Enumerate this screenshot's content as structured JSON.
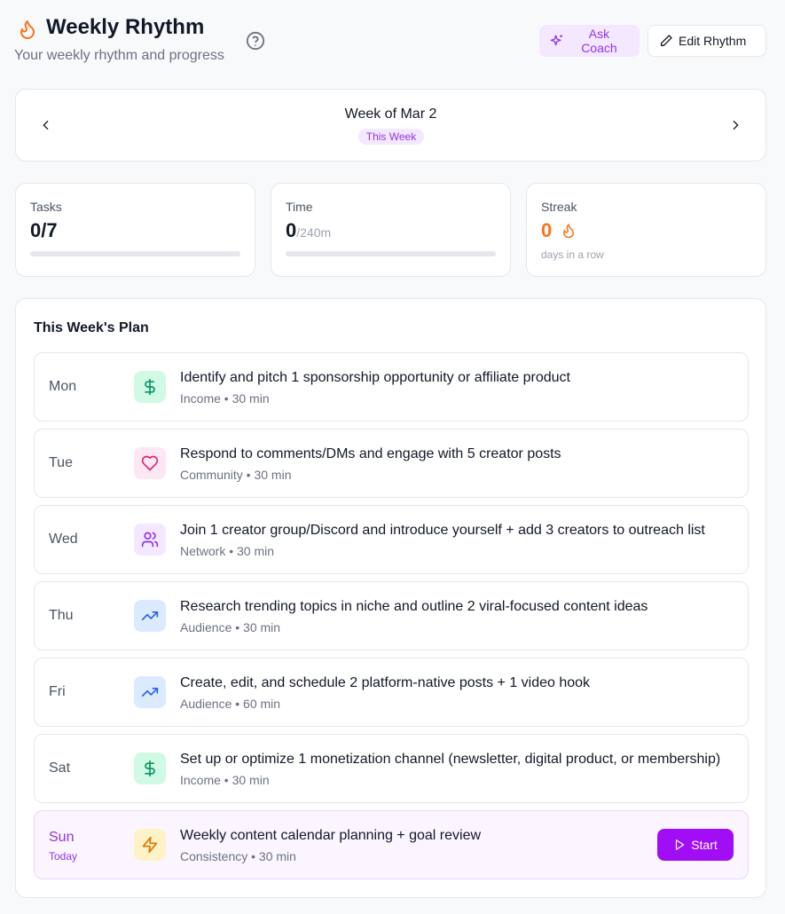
{
  "header": {
    "title": "Weekly Rhythm",
    "subtitle": "Your weekly rhythm and progress",
    "ask_coach": "Ask Coach",
    "edit_rhythm": "Edit Rhythm"
  },
  "week": {
    "label": "Week of Mar 2",
    "badge": "This Week"
  },
  "stats": {
    "tasks_label": "Tasks",
    "tasks_value": "0/7",
    "tasks_progress": 0,
    "time_label": "Time",
    "time_value": "0",
    "time_total": "/240m",
    "time_progress": 0,
    "streak_label": "Streak",
    "streak_value": "0",
    "streak_sub": "days in a row"
  },
  "plan": {
    "title": "This Week's Plan",
    "today_label": "Today",
    "start_label": "Start",
    "items": [
      {
        "day": "Mon",
        "title": "Identify and pitch 1 sponsorship opportunity or affiliate product",
        "meta": "Income • 30 min",
        "icon": "dollar"
      },
      {
        "day": "Tue",
        "title": "Respond to comments/DMs and engage with 5 creator posts",
        "meta": "Community • 30 min",
        "icon": "heart"
      },
      {
        "day": "Wed",
        "title": "Join 1 creator group/Discord and introduce yourself + add 3 creators to outreach list",
        "meta": "Network • 30 min",
        "icon": "users"
      },
      {
        "day": "Thu",
        "title": "Research trending topics in niche and outline 2 viral-focused content ideas",
        "meta": "Audience • 30 min",
        "icon": "trending-up"
      },
      {
        "day": "Fri",
        "title": "Create, edit, and schedule 2 platform-native posts + 1 video hook",
        "meta": "Audience • 60 min",
        "icon": "trending-up"
      },
      {
        "day": "Sat",
        "title": "Set up or optimize 1 monetization channel (newsletter, digital product, or membership)",
        "meta": "Income • 30 min",
        "icon": "dollar"
      },
      {
        "day": "Sun",
        "title": "Weekly content calendar planning + goal review",
        "meta": "Consistency • 30 min",
        "icon": "zap"
      }
    ]
  }
}
